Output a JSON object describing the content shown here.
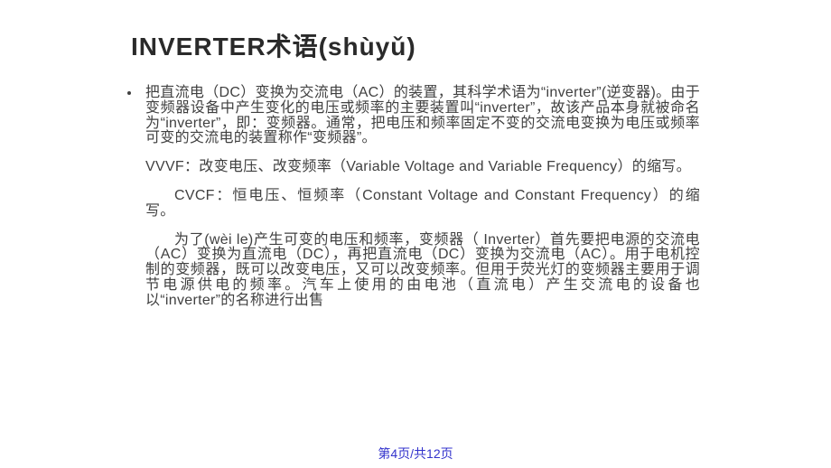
{
  "title": "INVERTER术语(shùyǔ)",
  "paragraphs": {
    "p1": "把直流电（DC）变换为交流电（AC）的装置，其科学术语为“inverter”(逆变器)。由于变频器设备中产生变化的电压或频率的主要装置叫“inverter”，故该产品本身就被命名为“inverter”，即：变频器。通常，把电压和频率固定不变的交流电变换为电压或频率可变的交流电的装置称作“变频器”。",
    "p2": "VVVF：改变电压、改变频率（Variable Voltage and Variable Frequency）的缩写。",
    "p3": "CVCF：恒电压、恒频率（Constant Voltage and Constant Frequency）的缩写。",
    "p4": "为了(wèi le)产生可变的电压和频率，变频器（ Inverter）首先要把电源的交流电（AC）变换为直流电（DC），再把直流电（DC）变换为交流电（AC）。用于电机控制的变频器，既可以改变电压，又可以改变频率。但用于荧光灯的变频器主要用于调节电源供电的频率。汽车上使用的由电池（直流电）产生交流电的设备也以“inverter”的名称进行出售"
  },
  "footer": "第4页/共12页",
  "colors": {
    "background": "#ffffff",
    "title_color": "#2a2a2a",
    "text_color": "#404040",
    "footer_color": "#3333cc"
  },
  "typography": {
    "title_fontsize": 28,
    "body_fontsize": 16,
    "footer_fontsize": 14
  }
}
